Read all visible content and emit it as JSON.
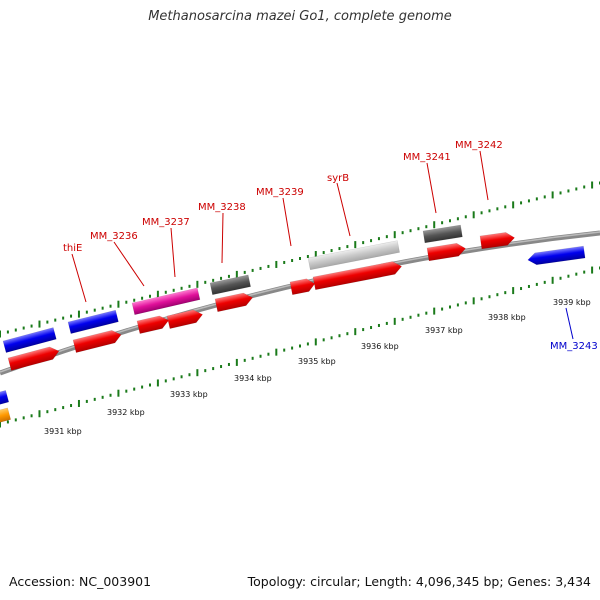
{
  "title": "Methanosarcina mazei Go1, complete genome",
  "footer": {
    "accession": "Accession: NC_003901",
    "stats": "Topology: circular; Length: 4,096,345 bp; Genes: 3,434"
  },
  "kbp_labels": [
    "3931 kbp",
    "3932 kbp",
    "3933 kbp",
    "3934 kbp",
    "3935 kbp",
    "3936 kbp",
    "3937 kbp",
    "3938 kbp",
    "3939 kbp"
  ],
  "gene_labels": [
    "thiE",
    "MM_3236",
    "MM_3237",
    "MM_3238",
    "MM_3239",
    "syrB",
    "MM_3241",
    "MM_3242",
    "MM_3243"
  ],
  "colors": {
    "forward_cds": "#ee0000",
    "reverse_cds": "#0000ee",
    "gray_feature": "#555555",
    "light_feature": "#c8c8c8",
    "magenta_feature": "#e0109a",
    "orange_feature": "#ff9900",
    "tick": "#1a7a1a",
    "backbone": "#888888",
    "label_forward": "#cc0000",
    "label_reverse": "#0000cc"
  }
}
